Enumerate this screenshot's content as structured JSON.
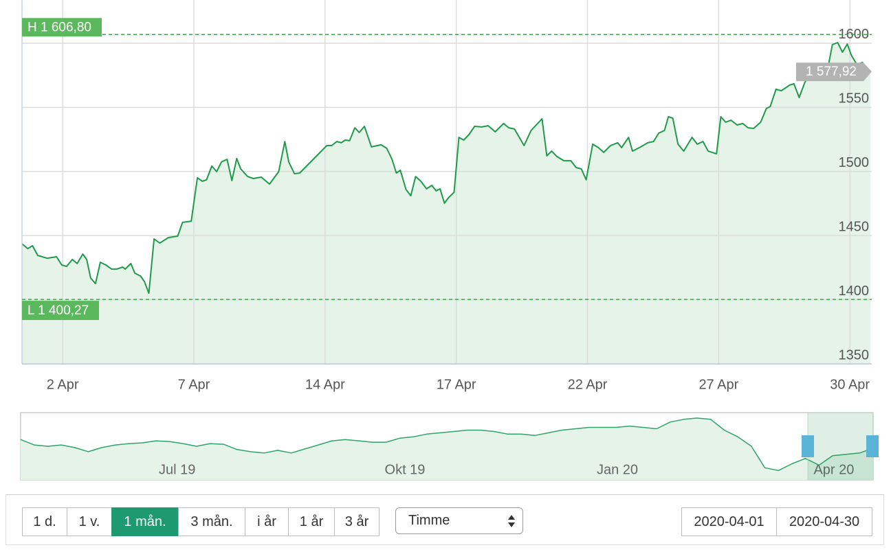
{
  "chart_data": [
    {
      "type": "line",
      "color": "#1e9a4a",
      "fill": "#e5f3e9",
      "grid": true,
      "x": [
        0.07,
        0.2,
        0.31,
        0.43,
        0.64,
        0.86,
        0.98,
        1.09,
        1.22,
        1.33,
        1.46,
        1.55,
        1.64,
        1.75,
        1.86,
        1.99,
        2.12,
        2.24,
        2.37,
        2.43,
        2.56,
        2.65,
        2.78,
        2.87,
        2.97,
        3.09,
        3.22,
        3.42,
        3.63,
        3.74,
        3.94,
        4.08,
        4.19,
        4.29,
        4.41,
        4.52,
        4.63,
        4.76,
        4.87,
        4.98,
        5.07,
        5.23,
        5.36,
        5.54,
        5.73,
        5.94,
        6.08,
        6.17,
        6.3,
        6.42,
        7.04,
        7.15,
        7.27,
        7.37,
        7.46,
        7.56,
        7.68,
        7.78,
        7.9,
        8.06,
        8.28,
        8.41,
        8.53,
        8.63,
        8.72,
        8.85,
        8.96,
        9.07,
        9.19,
        9.32,
        9.44,
        9.54,
        9.63,
        9.73,
        9.82,
        9.95,
        10.06,
        10.17,
        10.29,
        10.42,
        10.58,
        10.73,
        10.89,
        11.08,
        11.2,
        11.33,
        11.55,
        11.71,
        11.96,
        12.07,
        12.18,
        12.3,
        12.46,
        12.62,
        12.74,
        12.86,
        12.97,
        13.12,
        13.25,
        13.37,
        13.53,
        13.69,
        13.78,
        13.94,
        14.03,
        14.22,
        14.38,
        14.51,
        14.63,
        14.76,
        14.85,
        14.95,
        15.07,
        15.2,
        15.39,
        15.51,
        15.64,
        15.76,
        15.95,
        16.05,
        16.16,
        16.28,
        16.42,
        16.55,
        16.67,
        16.8,
        16.96,
        17.09,
        17.18,
        17.31,
        17.43,
        17.53,
        17.62,
        17.72,
        17.84,
        17.97,
        18.09,
        18.22,
        18.38,
        18.5,
        18.6,
        18.72,
        18.83,
        18.94,
        19.03,
        19.16,
        19.29,
        19.38,
        19.47
      ],
      "values": [
        1443.7,
        1439.9,
        1442.1,
        1434.6,
        1432.4,
        1433.5,
        1427.1,
        1426.0,
        1431.4,
        1428.2,
        1435.6,
        1431.4,
        1416.9,
        1412.6,
        1429.2,
        1427.1,
        1423.9,
        1423.9,
        1425.5,
        1423.9,
        1428.2,
        1420.7,
        1418.5,
        1414.2,
        1405.1,
        1447.4,
        1444.2,
        1448.5,
        1449.6,
        1460.3,
        1461.3,
        1495.1,
        1492.4,
        1493.5,
        1504.2,
        1499.9,
        1507.4,
        1509.5,
        1492.9,
        1510.1,
        1502.0,
        1496.1,
        1494.5,
        1495.6,
        1490.2,
        1499.9,
        1523.4,
        1507.4,
        1498.3,
        1498.8,
        1520.2,
        1520.2,
        1523.4,
        1522.4,
        1524.5,
        1524.0,
        1534.1,
        1530.4,
        1535.2,
        1519.2,
        1520.8,
        1518.1,
        1509.5,
        1498.8,
        1501.0,
        1486.0,
        1481.1,
        1496.1,
        1492.4,
        1486.5,
        1489.2,
        1484.9,
        1486.5,
        1475.3,
        1479.5,
        1483.8,
        1526.6,
        1524.5,
        1528.8,
        1535.2,
        1534.7,
        1535.7,
        1530.9,
        1537.4,
        1534.1,
        1533.1,
        1520.2,
        1532.0,
        1541.1,
        1512.2,
        1515.9,
        1511.7,
        1508.4,
        1508.4,
        1503.1,
        1502.0,
        1493.5,
        1521.3,
        1518.6,
        1514.9,
        1520.2,
        1522.4,
        1518.6,
        1526.6,
        1515.9,
        1519.2,
        1522.4,
        1523.4,
        1529.9,
        1532.0,
        1542.7,
        1541.6,
        1521.3,
        1515.9,
        1526.6,
        1521.3,
        1523.4,
        1515.9,
        1513.8,
        1542.7,
        1538.4,
        1540.0,
        1536.3,
        1537.4,
        1534.1,
        1533.6,
        1538.4,
        1549.1,
        1550.7,
        1564.1,
        1563.0,
        1565.2,
        1567.3,
        1568.4,
        1557.7,
        1569.5,
        1575.9,
        1579.1,
        1580.2,
        1581.2,
        1598.9,
        1600.5,
        1593.0,
        1599.4,
        1590.9,
        1583.4,
        1585.0,
        1578.0,
        1577.92
      ],
      "xlim": [
        0.07,
        19.5
      ],
      "ylim": [
        1350,
        1633.7
      ],
      "xticks": [
        {
          "value": 1,
          "label": "2 Apr"
        },
        {
          "value": 4,
          "label": "7 Apr"
        },
        {
          "value": 7,
          "label": "14 Apr"
        },
        {
          "value": 10,
          "label": "17 Apr"
        },
        {
          "value": 13,
          "label": "22 Apr"
        },
        {
          "value": 16,
          "label": "27 Apr"
        },
        {
          "value": 19,
          "label": "30 Apr"
        }
      ],
      "yticks": [
        1350,
        1400,
        1450,
        1500,
        1550,
        1600
      ],
      "high": {
        "value": 1606.8,
        "label": "H 1 606,80"
      },
      "low": {
        "value": 1400.27,
        "label": "L 1 400,27"
      },
      "last": {
        "value": 1577.92,
        "label": "1 577,92"
      }
    },
    {
      "type": "line",
      "color": "#2ea36a",
      "fill": "#e5f3e9",
      "values": [
        1696,
        1623,
        1605,
        1623,
        1587,
        1532,
        1587,
        1623,
        1641,
        1651,
        1678,
        1669,
        1641,
        1605,
        1641,
        1632,
        1560,
        1532,
        1514,
        1550,
        1514,
        1569,
        1623,
        1678,
        1696,
        1678,
        1660,
        1660,
        1714,
        1732,
        1769,
        1787,
        1805,
        1823,
        1823,
        1805,
        1769,
        1769,
        1751,
        1787,
        1823,
        1842,
        1860,
        1860,
        1860,
        1878,
        1860,
        1842,
        1933,
        1969,
        1987,
        1969,
        1823,
        1732,
        1605,
        1314,
        1277,
        1368,
        1441,
        1350,
        1478,
        1496,
        1514,
        1578
      ],
      "xlim": [
        0,
        63
      ],
      "ylim": [
        1150,
        2060
      ],
      "xticks": [
        {
          "value": 11.57,
          "label": "Jul 19"
        },
        {
          "value": 28.4,
          "label": "Okt 19"
        },
        {
          "value": 44.1,
          "label": "Jan 20"
        },
        {
          "value": 60.1,
          "label": "Apr 20"
        }
      ]
    }
  ],
  "controls": {
    "periods": [
      "1 d.",
      "1 v.",
      "1 mån.",
      "3 mån.",
      "i år",
      "1 år",
      "3 år"
    ],
    "active_period": 2,
    "interval": "Timme",
    "from": "2020-04-01",
    "to": "2020-04-30"
  }
}
